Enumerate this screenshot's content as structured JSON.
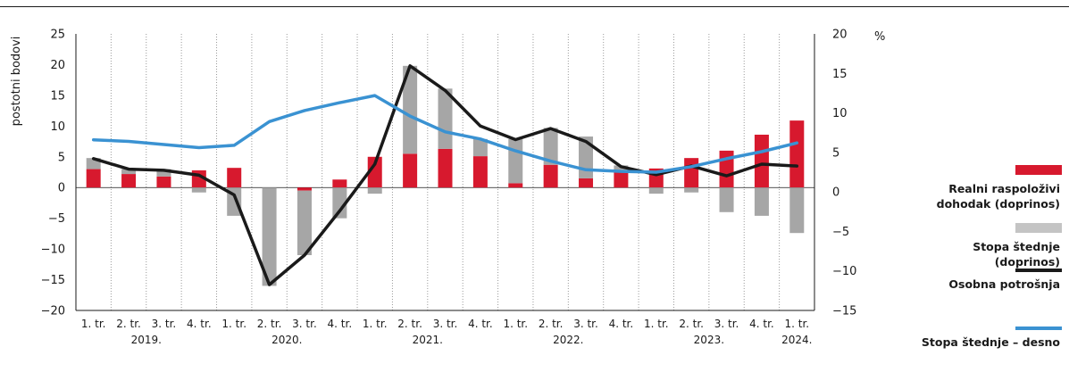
{
  "chart_data": {
    "type": "bar+line",
    "categories": [
      "1. tr.",
      "2. tr.",
      "3. tr.",
      "4. tr.",
      "1. tr.",
      "2. tr.",
      "3. tr.",
      "4. tr.",
      "1. tr.",
      "2. tr.",
      "3. tr.",
      "4. tr.",
      "1. tr.",
      "2. tr.",
      "3. tr.",
      "4. tr.",
      "1. tr.",
      "2. tr.",
      "3. tr.",
      "4. tr.",
      "1. tr."
    ],
    "years": [
      {
        "label": "2019.",
        "start": 0,
        "end": 3
      },
      {
        "label": "2020.",
        "start": 4,
        "end": 7
      },
      {
        "label": "2021.",
        "start": 8,
        "end": 11
      },
      {
        "label": "2022.",
        "start": 12,
        "end": 15
      },
      {
        "label": "2023.",
        "start": 16,
        "end": 19
      },
      {
        "label": "2024.",
        "start": 20,
        "end": 20
      }
    ],
    "ylabel_left": "postotni bodovi",
    "ylabel_right": "%",
    "ylim_left": [
      -20,
      25
    ],
    "yticks_left": [
      25,
      20,
      15,
      10,
      5,
      0,
      -5,
      -10,
      -15,
      -20
    ],
    "ylim_right": [
      -15,
      20
    ],
    "yticks_right": [
      20,
      15,
      10,
      5,
      0,
      -5,
      -10,
      -15
    ],
    "series": [
      {
        "name": "Realni raspoloživi dohodak (doprinos)",
        "type": "bar",
        "axis": "left",
        "color": "#d7192e",
        "values": [
          3.0,
          2.2,
          1.8,
          2.8,
          3.2,
          0,
          -0.5,
          1.3,
          5.0,
          5.5,
          6.3,
          5.1,
          0.7,
          3.7,
          1.5,
          2.6,
          3.1,
          4.8,
          6.0,
          8.6,
          10.9
        ]
      },
      {
        "name": "Stopa štednje (doprinos)",
        "type": "bar",
        "axis": "left",
        "color": "#a6a6a6",
        "values": [
          1.8,
          0.8,
          1.2,
          -0.8,
          -4.6,
          -16.0,
          -10.5,
          -5.0,
          -1.0,
          14.3,
          9.8,
          2.8,
          7.2,
          6.0,
          6.8,
          1.0,
          -1.0,
          -0.8,
          -4.0,
          -4.6,
          -7.4
        ]
      },
      {
        "name": "Osobna potrošnja",
        "type": "line",
        "axis": "left",
        "color": "#1a1a1a",
        "values": [
          4.7,
          3.0,
          2.8,
          2.0,
          -1.2,
          -15.8,
          -11.0,
          -3.8,
          3.8,
          19.8,
          15.8,
          10.0,
          7.8,
          9.6,
          7.5,
          3.4,
          2.1,
          3.5,
          1.9,
          3.8,
          3.5
        ]
      },
      {
        "name": "Stopa štednje – desno",
        "type": "line",
        "axis": "right",
        "color": "#3a92d2",
        "values": [
          6.6,
          6.4,
          6.0,
          5.6,
          5.9,
          8.9,
          10.3,
          11.3,
          12.2,
          9.6,
          7.6,
          6.7,
          5.2,
          3.9,
          2.8,
          2.6,
          2.5,
          3.2,
          4.2,
          5.1,
          6.2
        ]
      }
    ]
  },
  "legend": [
    {
      "label": "Realni raspoloživi dohodak (doprinos)",
      "color": "#d7192e",
      "kind": "bar"
    },
    {
      "label": "Stopa štednje (doprinos)",
      "color": "#c4c4c4",
      "kind": "bar"
    },
    {
      "label": "Osobna potrošnja",
      "color": "#1a1a1a",
      "kind": "line"
    },
    {
      "label": "Stopa štednje – desno",
      "color": "#3a92d2",
      "kind": "line"
    }
  ]
}
